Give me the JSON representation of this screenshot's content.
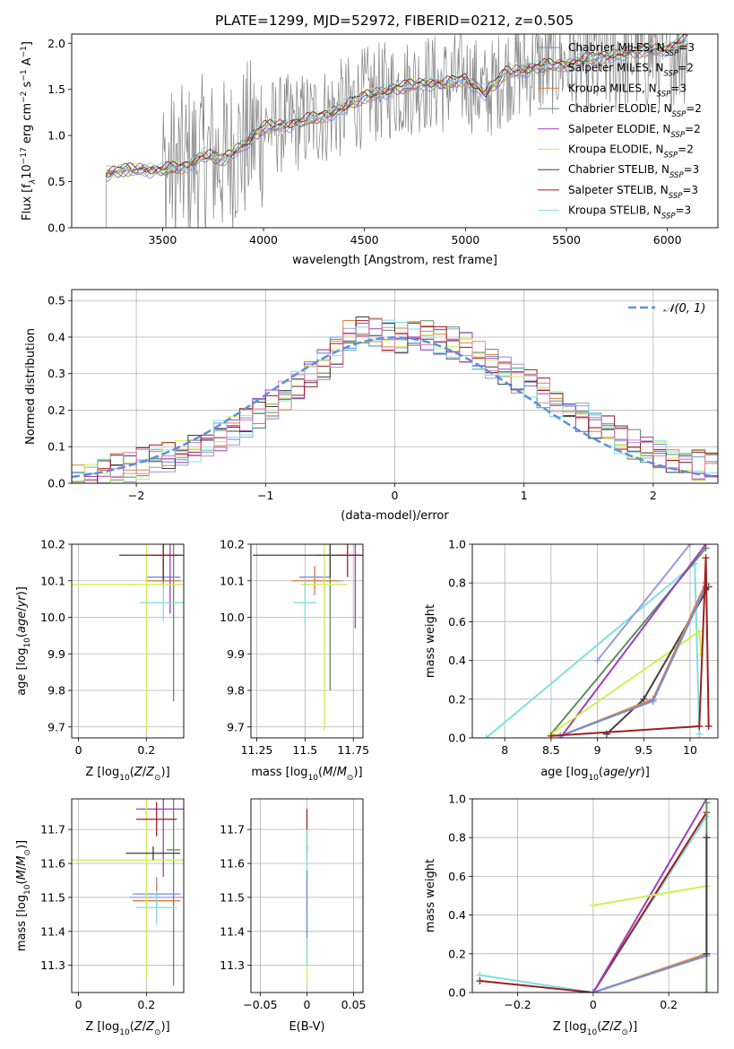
{
  "figure": {
    "title": "PLATE=1299, MJD=52972, FIBERID=0212, z=0.505"
  },
  "colors": {
    "Chabrier MILES": "#6f8fdd",
    "Salpeter MILES": "#9b9bd8",
    "Kroupa MILES": "#df7f3f",
    "Chabrier ELODIE": "#5f8f5f",
    "Salpeter ELODIE": "#9f3fbf",
    "Kroupa ELODIE": "#cfef4f",
    "Chabrier STELIB": "#3f3f3f",
    "Salpeter STELIB": "#9f1f1f",
    "Kroupa STELIB": "#7fdfdf",
    "data": "#808080",
    "normal_curve": "#5f8fdf",
    "hist_extra": "#df7faf"
  },
  "chart_data": [
    {
      "type": "line",
      "id": "spectrum",
      "xlabel": "wavelength [Angstrom, rest frame]",
      "ylabel_parts": [
        "Flux [f",
        "λ",
        "10",
        "−17",
        " erg cm",
        "−2",
        " s",
        "−1",
        " A",
        "−1",
        "]"
      ],
      "xlim": [
        3050,
        6250
      ],
      "ylim": [
        0,
        2.1
      ],
      "xticks": [
        3500,
        4000,
        4500,
        5000,
        5500,
        6000
      ],
      "yticks": [
        0.0,
        0.5,
        1.0,
        1.5,
        2.0
      ],
      "grid": false,
      "legend_position": "top-right",
      "series": [
        {
          "name": "Chabrier MILES",
          "nssp": "3"
        },
        {
          "name": "Salpeter MILES",
          "nssp": "2"
        },
        {
          "name": "Kroupa MILES",
          "nssp": "3"
        },
        {
          "name": "Chabrier ELODIE",
          "nssp": "2"
        },
        {
          "name": "Salpeter ELODIE",
          "nssp": "2"
        },
        {
          "name": "Kroupa ELODIE",
          "nssp": "2"
        },
        {
          "name": "Chabrier STELIB",
          "nssp": "3"
        },
        {
          "name": "Salpeter STELIB",
          "nssp": "3"
        },
        {
          "name": "Kroupa STELIB",
          "nssp": "3"
        }
      ],
      "model_trend": {
        "x": [
          3220,
          3300,
          3400,
          3500,
          3600,
          3700,
          3800,
          3900,
          4000,
          4100,
          4200,
          4300,
          4400,
          4500,
          4600,
          4700,
          4800,
          4900,
          5000,
          5100,
          5200,
          5300,
          5400,
          5500,
          5600,
          5700,
          5800,
          5900,
          6000,
          6100
        ],
        "y": [
          0.58,
          0.62,
          0.64,
          0.62,
          0.66,
          0.78,
          0.74,
          0.9,
          1.08,
          1.12,
          1.15,
          1.22,
          1.3,
          1.42,
          1.48,
          1.52,
          1.58,
          1.55,
          1.62,
          1.45,
          1.68,
          1.72,
          1.75,
          1.78,
          1.82,
          1.86,
          1.9,
          1.92,
          1.95,
          2.02
        ]
      }
    },
    {
      "type": "bar",
      "id": "residual_hist",
      "xlabel": "(data-model)/error",
      "ylabel": "Normed distribution",
      "xlim": [
        -2.5,
        2.5
      ],
      "ylim": [
        0,
        0.53
      ],
      "xticks": [
        -2,
        -1,
        0,
        1,
        2
      ],
      "yticks": [
        0.0,
        0.1,
        0.2,
        0.3,
        0.4,
        0.5
      ],
      "grid": true,
      "legend": {
        "label": "𝒩(0, 1)",
        "position": "top-right"
      },
      "bin_width": 0.1,
      "shape": {
        "x": [
          -2.5,
          -2.0,
          -1.5,
          -1.0,
          -0.5,
          -0.3,
          0.0,
          0.3,
          0.5,
          1.0,
          1.5,
          2.0,
          2.5
        ],
        "y": [
          0.01,
          0.05,
          0.1,
          0.2,
          0.34,
          0.43,
          0.4,
          0.4,
          0.38,
          0.28,
          0.17,
          0.08,
          0.04
        ]
      }
    },
    {
      "type": "scatter",
      "id": "age_vs_Z",
      "xlabel": "Z [log10(Z/Z⊙)]",
      "ylabel": "age [log10(age/yr)]",
      "xlim": [
        -0.02,
        0.31
      ],
      "ylim": [
        9.67,
        10.2
      ],
      "xticks": [
        0.0,
        0.2
      ],
      "yticks": [
        9.7,
        9.8,
        9.9,
        10.0,
        10.1,
        10.2
      ],
      "grid": true,
      "points": [
        {
          "series": "Chabrier MILES",
          "x": 0.25,
          "y": 10.11,
          "x_err": 0.05,
          "y_err": 0.02
        },
        {
          "series": "Salpeter MILES",
          "x": 0.25,
          "y": 10.1,
          "x_err": 0.05,
          "y_err": 0.02
        },
        {
          "series": "Kroupa MILES",
          "x": 0.25,
          "y": 10.1,
          "x_err": 0.05,
          "y_err": 0.02
        },
        {
          "series": "Chabrier ELODIE",
          "x": 0.28,
          "y": 10.17,
          "x_err": 0.02,
          "y_err": 0.4
        },
        {
          "series": "Salpeter ELODIE",
          "x": 0.27,
          "y": 10.17,
          "x_err": 0.03,
          "y_err": 0.16
        },
        {
          "series": "Kroupa ELODIE",
          "x": 0.2,
          "y": 10.09,
          "x_err": 0.23,
          "y_err": 0.4
        },
        {
          "series": "Chabrier STELIB",
          "x": 0.25,
          "y": 10.17,
          "x_err": 0.13,
          "y_err": 0.07
        },
        {
          "series": "Salpeter STELIB",
          "x": 0.25,
          "y": 10.17,
          "x_err": 0.05,
          "y_err": 0.05
        },
        {
          "series": "Kroupa STELIB",
          "x": 0.25,
          "y": 10.04,
          "x_err": 0.07,
          "y_err": 0.05
        }
      ]
    },
    {
      "type": "scatter",
      "id": "age_vs_mass",
      "xlabel": "mass [log10(M/M⊙)]",
      "ylabel": "",
      "xlim": [
        11.22,
        11.8
      ],
      "ylim": [
        9.67,
        10.2
      ],
      "xticks": [
        11.25,
        11.5,
        11.75
      ],
      "yticks": [
        9.7,
        9.8,
        9.9,
        10.0,
        10.1,
        10.2
      ],
      "grid": true,
      "points": [
        {
          "series": "Chabrier MILES",
          "x": 11.55,
          "y": 10.11,
          "x_err": 0.08,
          "y_err": 0.03
        },
        {
          "series": "Salpeter MILES",
          "x": 11.6,
          "y": 10.1,
          "x_err": 0.1,
          "y_err": 0.03
        },
        {
          "series": "Kroupa MILES",
          "x": 11.55,
          "y": 10.1,
          "x_err": 0.12,
          "y_err": 0.04
        },
        {
          "series": "Chabrier ELODIE",
          "x": 11.63,
          "y": 10.17,
          "x_err": 0.08,
          "y_err": 0.37
        },
        {
          "series": "Salpeter ELODIE",
          "x": 11.76,
          "y": 10.17,
          "x_err": 0.03,
          "y_err": 0.2
        },
        {
          "series": "Kroupa ELODIE",
          "x": 11.6,
          "y": 10.09,
          "x_err": 0.12,
          "y_err": 0.4
        },
        {
          "series": "Chabrier STELIB",
          "x": 11.63,
          "y": 10.17,
          "x_err": 0.4,
          "y_err": 0.06
        },
        {
          "series": "Salpeter STELIB",
          "x": 11.72,
          "y": 10.17,
          "x_err": 0.06,
          "y_err": 0.06
        },
        {
          "series": "Kroupa STELIB",
          "x": 11.5,
          "y": 10.04,
          "x_err": 0.06,
          "y_err": 0.06
        }
      ]
    },
    {
      "type": "line",
      "id": "weight_vs_age",
      "xlabel": "age [log10(age/yr)]",
      "ylabel": "mass weight",
      "xlim": [
        7.65,
        10.3
      ],
      "ylim": [
        0,
        1.0
      ],
      "xticks": [
        8.0,
        8.5,
        9.0,
        9.5,
        10.0
      ],
      "yticks": [
        0.0,
        0.2,
        0.4,
        0.6,
        0.8,
        1.0
      ],
      "grid": true,
      "series": [
        {
          "name": "Kroupa STELIB",
          "x": [
            7.8,
            10.05,
            10.1
          ],
          "y": [
            0.0,
            0.9,
            0.02
          ]
        },
        {
          "name": "Chabrier ELODIE",
          "x": [
            8.5,
            10.17
          ],
          "y": [
            0.02,
            0.98
          ]
        },
        {
          "name": "Salpeter ELODIE",
          "x": [
            8.6,
            10.17
          ],
          "y": [
            0.0,
            1.0
          ]
        },
        {
          "name": "Kroupa ELODIE",
          "x": [
            8.5,
            10.1,
            10.12
          ],
          "y": [
            0.02,
            0.55,
            0.43
          ]
        },
        {
          "name": "Chabrier STELIB",
          "x": [
            9.1,
            9.5,
            10.2
          ],
          "y": [
            0.02,
            0.2,
            0.78
          ]
        },
        {
          "name": "Kroupa MILES",
          "x": [
            8.6,
            9.6,
            10.17
          ],
          "y": [
            0.01,
            0.2,
            0.8
          ]
        },
        {
          "name": "Chabrier MILES",
          "x": [
            8.6,
            9.6,
            10.17
          ],
          "y": [
            0.01,
            0.19,
            0.78
          ]
        },
        {
          "name": "Salpeter STELIB",
          "x": [
            8.5,
            10.1,
            10.17,
            10.2
          ],
          "y": [
            0.01,
            0.06,
            0.93,
            0.06
          ]
        },
        {
          "name": "Salpeter MILES",
          "x": [
            9.0,
            10.0
          ],
          "y": [
            0.4,
            1.0
          ]
        }
      ]
    },
    {
      "type": "scatter",
      "id": "mass_vs_Z",
      "xlabel": "Z [log10(Z/Z⊙)]",
      "ylabel": "mass [log10(M/M⊙)]",
      "xlim": [
        -0.02,
        0.31
      ],
      "ylim": [
        11.22,
        11.79
      ],
      "xticks": [
        0.0,
        0.2
      ],
      "yticks": [
        11.3,
        11.4,
        11.5,
        11.6,
        11.7
      ],
      "grid": true,
      "points": [
        {
          "series": "Chabrier MILES",
          "x": 0.23,
          "y": 11.51,
          "x_err": 0.07,
          "y_err": 0.05
        },
        {
          "series": "Salpeter MILES",
          "x": 0.23,
          "y": 11.5,
          "x_err": 0.08,
          "y_err": 0.05
        },
        {
          "series": "Kroupa MILES",
          "x": 0.23,
          "y": 11.49,
          "x_err": 0.07,
          "y_err": 0.05
        },
        {
          "series": "Chabrier ELODIE",
          "x": 0.28,
          "y": 11.64,
          "x_err": 0.02,
          "y_err": 0.4
        },
        {
          "series": "Salpeter ELODIE",
          "x": 0.25,
          "y": 11.76,
          "x_err": 0.08,
          "y_err": 0.2
        },
        {
          "series": "Kroupa ELODIE",
          "x": 0.2,
          "y": 11.61,
          "x_err": 0.23,
          "y_err": 0.35
        },
        {
          "series": "Chabrier STELIB",
          "x": 0.22,
          "y": 11.63,
          "x_err": 0.08,
          "y_err": 0.02
        },
        {
          "series": "Salpeter STELIB",
          "x": 0.23,
          "y": 11.73,
          "x_err": 0.06,
          "y_err": 0.05
        },
        {
          "series": "Kroupa STELIB",
          "x": 0.23,
          "y": 11.47,
          "x_err": 0.06,
          "y_err": 0.05
        }
      ]
    },
    {
      "type": "scatter",
      "id": "mass_vs_ebv",
      "xlabel": "E(B-V)",
      "ylabel": "",
      "xlim": [
        -0.06,
        0.06
      ],
      "ylim": [
        11.22,
        11.79
      ],
      "xticks": [
        -0.05,
        0.0,
        0.05
      ],
      "yticks": [
        11.3,
        11.4,
        11.5,
        11.6,
        11.7
      ],
      "grid": true,
      "points": [
        {
          "series": "Salpeter STELIB",
          "x": 0.0,
          "y": 11.7,
          "y_err": 0.06
        },
        {
          "series": "Chabrier STELIB",
          "x": 0.0,
          "y": 11.63,
          "y_err": 0.02
        },
        {
          "series": "Kroupa ELODIE",
          "x": 0.0,
          "y": 11.35,
          "y_err": 0.1
        },
        {
          "series": "Kroupa STELIB",
          "x": 0.0,
          "y": 11.5,
          "y_err": 0.2
        },
        {
          "series": "Chabrier MILES",
          "x": 0.0,
          "y": 11.48,
          "y_err": 0.1
        }
      ]
    },
    {
      "type": "line",
      "id": "weight_vs_Z",
      "xlabel": "Z [log10(Z/Z⊙)]",
      "ylabel": "mass weight",
      "xlim": [
        -0.32,
        0.33
      ],
      "ylim": [
        0,
        1.0
      ],
      "xticks": [
        -0.2,
        0.0,
        0.2
      ],
      "yticks": [
        0.0,
        0.2,
        0.4,
        0.6,
        0.8,
        1.0
      ],
      "grid": true,
      "series": [
        {
          "name": "Kroupa STELIB",
          "x": [
            -0.3,
            0.0,
            0.3
          ],
          "y": [
            0.09,
            0.0,
            0.91
          ]
        },
        {
          "name": "Salpeter STELIB",
          "x": [
            -0.3,
            0.0,
            0.3
          ],
          "y": [
            0.06,
            0.0,
            0.93
          ]
        },
        {
          "name": "Salpeter ELODIE",
          "x": [
            0.0,
            0.3
          ],
          "y": [
            0.0,
            1.0
          ]
        },
        {
          "name": "Kroupa ELODIE",
          "x": [
            0.0,
            0.3
          ],
          "y": [
            0.45,
            0.55
          ]
        },
        {
          "name": "Chabrier ELODIE",
          "x": [
            0.3,
            0.3
          ],
          "y": [
            0.0,
            0.98
          ]
        },
        {
          "name": "Kroupa MILES",
          "x": [
            0.0,
            0.3
          ],
          "y": [
            0.0,
            0.2
          ]
        },
        {
          "name": "Chabrier MILES",
          "x": [
            0.0,
            0.3
          ],
          "y": [
            0.0,
            0.19
          ]
        },
        {
          "name": "Chabrier STELIB",
          "x": [
            0.3,
            0.3
          ],
          "y": [
            0.2,
            0.8
          ]
        }
      ]
    }
  ]
}
